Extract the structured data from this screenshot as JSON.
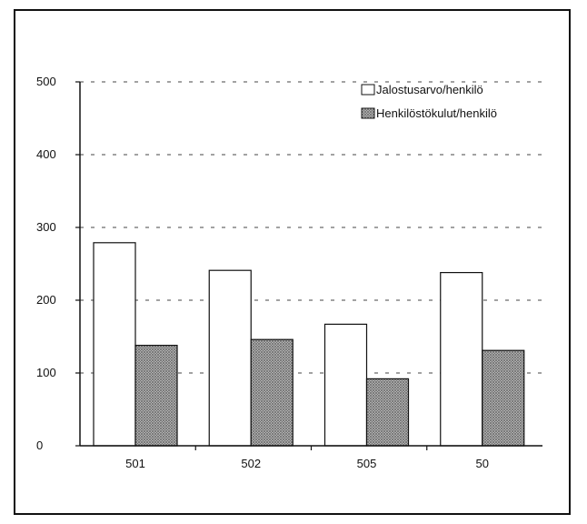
{
  "chart_data": {
    "type": "bar",
    "categories": [
      "501",
      "502",
      "505",
      "50"
    ],
    "series": [
      {
        "name": "Jalostusarvo/henkilö",
        "values": [
          279,
          241,
          167,
          238
        ],
        "fill": "#ffffff"
      },
      {
        "name": "Henkilöstökulut/henkilö",
        "values": [
          138,
          146,
          92,
          131
        ],
        "fill": "#b8b8b8",
        "pattern": "crosshatch"
      }
    ],
    "ylim": [
      0,
      500
    ],
    "yticks": [
      "0",
      "100",
      "200",
      "300",
      "400",
      "500"
    ],
    "grid": true,
    "grid_style": "dashed",
    "legend_position": "top-right",
    "title": "",
    "xlabel": "",
    "ylabel": ""
  }
}
